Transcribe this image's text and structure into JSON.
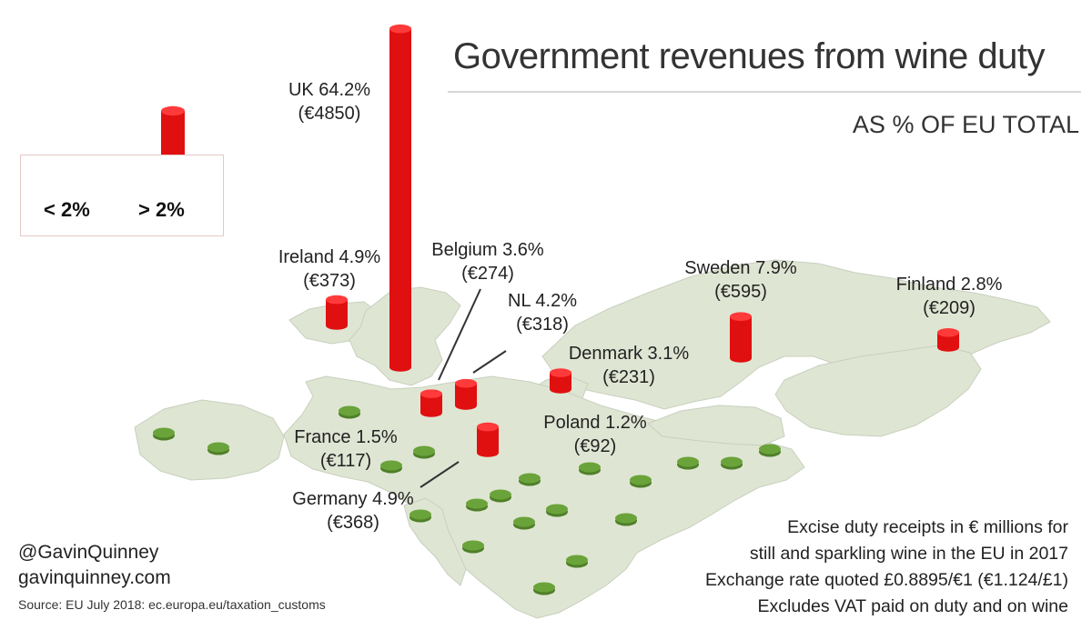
{
  "header": {
    "title": "Government revenues from wine duty",
    "subtitle": "AS % OF EU TOTAL"
  },
  "legend": {
    "below_label": "< 2%",
    "above_label": "> 2%"
  },
  "countries": [
    {
      "name_pct": "UK 64.2%",
      "value": "(€4850)"
    },
    {
      "name_pct": "Ireland 4.9%",
      "value": "(€373)"
    },
    {
      "name_pct": "Belgium 3.6%",
      "value": "(€274)"
    },
    {
      "name_pct": "NL 4.2%",
      "value": "(€318)"
    },
    {
      "name_pct": "Sweden 7.9%",
      "value": "(€595)"
    },
    {
      "name_pct": "Finland 2.8%",
      "value": "(€209)"
    },
    {
      "name_pct": "Denmark 3.1%",
      "value": "(€231)"
    },
    {
      "name_pct": "France 1.5%",
      "value": "(€117)"
    },
    {
      "name_pct": "Poland 1.2%",
      "value": "(€92)"
    },
    {
      "name_pct": "Germany 4.9%",
      "value": "(€368)"
    }
  ],
  "map_data": {
    "units": "€ millions",
    "pct_unit": "%",
    "threshold_pct": 2,
    "red_color": "#e01010",
    "green_color": "#6aa33a",
    "land_color": "#dfe5d3",
    "above_threshold": [
      {
        "country": "UK",
        "pct": 64.2,
        "eur_m": 4850
      },
      {
        "country": "Sweden",
        "pct": 7.9,
        "eur_m": 595
      },
      {
        "country": "Ireland",
        "pct": 4.9,
        "eur_m": 373
      },
      {
        "country": "Germany",
        "pct": 4.9,
        "eur_m": 368
      },
      {
        "country": "NL",
        "pct": 4.2,
        "eur_m": 318
      },
      {
        "country": "Belgium",
        "pct": 3.6,
        "eur_m": 274
      },
      {
        "country": "Denmark",
        "pct": 3.1,
        "eur_m": 231
      },
      {
        "country": "Finland",
        "pct": 2.8,
        "eur_m": 209
      }
    ],
    "below_threshold_count": 20
  },
  "notes": [
    "Excise duty receipts in € millions for",
    "still and sparkling wine in the EU in 2017",
    "Exchange rate quoted £0.8895/€1 (€1.124/£1)",
    "Excludes VAT paid on duty and on wine"
  ],
  "credit": {
    "handle": "@GavinQuinney",
    "website": "gavinquinney.com",
    "source": "Source: EU July 2018: ec.europa.eu/taxation_customs"
  }
}
